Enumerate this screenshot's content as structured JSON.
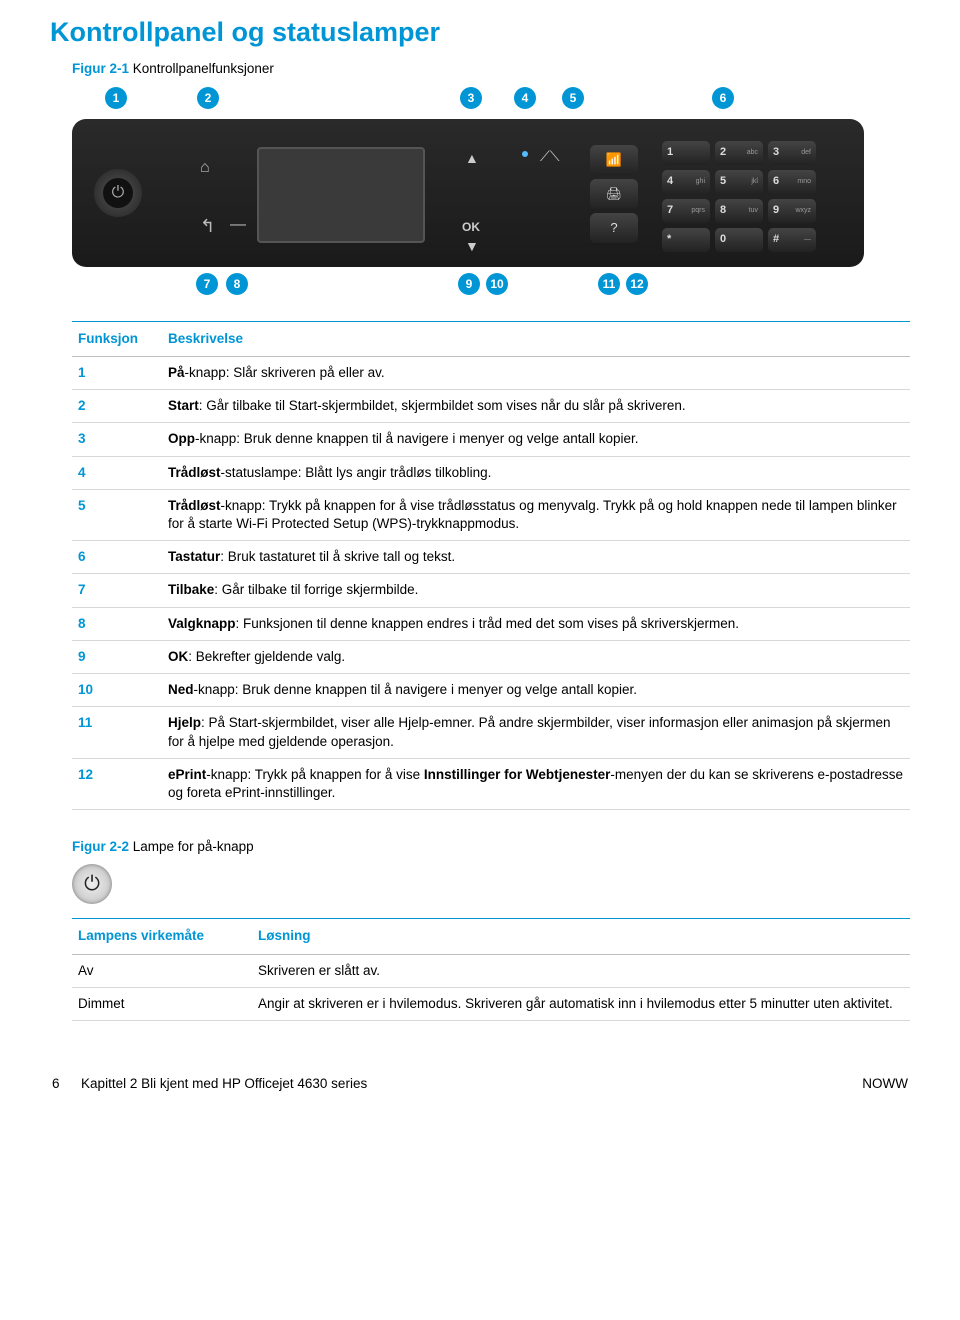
{
  "title": "Kontrollpanel og statuslamper",
  "fig1": {
    "num": "Figur 2-1",
    "title": "Kontrollpanelfunksjoner"
  },
  "fig2": {
    "num": "Figur 2-2",
    "title": "Lampe for på-knapp"
  },
  "callouts": {
    "top": [
      "1",
      "2",
      "3",
      "4",
      "5",
      "6"
    ],
    "bot": [
      "7",
      "8",
      "9",
      "10",
      "11",
      "12"
    ]
  },
  "colors": {
    "accent": "#0096d6",
    "border": "#d8d8d8",
    "panel_bg": "#1f1f1f"
  },
  "table1": {
    "headers": [
      "Funksjon",
      "Beskrivelse"
    ],
    "rows": [
      {
        "n": 1,
        "term": "På",
        "rest": "-knapp: Slår skriveren på eller av."
      },
      {
        "n": 2,
        "term": "Start",
        "rest": ": Går tilbake til Start-skjermbildet, skjermbildet som vises når du slår på skriveren."
      },
      {
        "n": 3,
        "term": "Opp",
        "rest": "-knapp: Bruk denne knappen til å navigere i menyer og velge antall kopier."
      },
      {
        "n": 4,
        "term": "Trådløst",
        "rest": "-statuslampe: Blått lys angir trådløs tilkobling."
      },
      {
        "n": 5,
        "term": "Trådløst",
        "rest": "-knapp: Trykk på knappen for å vise trådløsstatus og menyvalg. Trykk på og hold knappen nede til lampen blinker for å starte Wi-Fi Protected Setup (WPS)-trykknappmodus."
      },
      {
        "n": 6,
        "term": "Tastatur",
        "rest": ": Bruk tastaturet til å skrive tall og tekst."
      },
      {
        "n": 7,
        "term": "Tilbake",
        "rest": ": Går tilbake til forrige skjermbilde."
      },
      {
        "n": 8,
        "term": "Valgknapp",
        "rest": ": Funksjonen til denne knappen endres i tråd med det som vises på skriverskjermen."
      },
      {
        "n": 9,
        "term": "OK",
        "rest": ": Bekrefter gjeldende valg."
      },
      {
        "n": 10,
        "term": "Ned",
        "rest": "-knapp: Bruk denne knappen til å navigere i menyer og velge antall kopier."
      },
      {
        "n": 11,
        "term": "Hjelp",
        "rest": ": På Start-skjermbildet, viser alle Hjelp-emner. På andre skjermbilder, viser informasjon eller animasjon på skjermen for å hjelpe med gjeldende operasjon."
      },
      {
        "n": 12,
        "term": "ePrint",
        "rest": "-knapp: Trykk på knappen for å vise ",
        "term2": "Innstillinger for Webtjenester",
        "rest2": "-menyen der du kan se skriverens e-postadresse og foreta ePrint-innstillinger."
      }
    ]
  },
  "table2": {
    "headers": [
      "Lampens virkemåte",
      "Løsning"
    ],
    "rows": [
      {
        "mode": "Av",
        "desc": "Skriveren er slått av."
      },
      {
        "mode": "Dimmet",
        "desc": "Angir at skriveren er i hvilemodus. Skriveren går automatisk inn i hvilemodus etter 5 minutter uten aktivitet."
      }
    ]
  },
  "keypad": [
    {
      "n": "1",
      "t": ""
    },
    {
      "n": "2",
      "t": "abc"
    },
    {
      "n": "3",
      "t": "def"
    },
    {
      "n": "4",
      "t": "ghi"
    },
    {
      "n": "5",
      "t": "jkl"
    },
    {
      "n": "6",
      "t": "mno"
    },
    {
      "n": "7",
      "t": "pqrs"
    },
    {
      "n": "8",
      "t": "tuv"
    },
    {
      "n": "9",
      "t": "wxyz"
    },
    {
      "n": "*",
      "t": ""
    },
    {
      "n": "0",
      "t": ""
    },
    {
      "n": "#",
      "t": "—"
    }
  ],
  "footer": {
    "left_page": "6",
    "left_text": "Kapittel 2   Bli kjent med HP Officejet 4630 series",
    "right": "NOWW"
  }
}
